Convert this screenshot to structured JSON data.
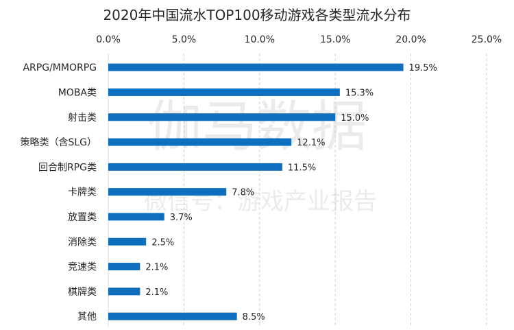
{
  "watermark": {
    "main": "伽马数据",
    "sub": "微信号：游戏产业报告"
  },
  "chart_data": {
    "type": "bar",
    "orientation": "horizontal",
    "title": "2020年中国流水TOP100移动游戏各类型流水分布",
    "xlabel": "",
    "ylabel": "",
    "xlim": [
      0,
      25
    ],
    "x_tick_values": [
      0,
      5,
      10,
      15,
      20,
      25
    ],
    "x_tick_labels": [
      "0.0%",
      "5.0%",
      "10.0%",
      "15.0%",
      "20.0%",
      "25.0%"
    ],
    "categories": [
      "ARPG/MMORPG",
      "MOBA类",
      "射击类",
      "策略类（含SLG）",
      "回合制RPG类",
      "卡牌类",
      "放置类",
      "消除类",
      "竞速类",
      "棋牌类",
      "其他"
    ],
    "values": [
      19.5,
      15.3,
      15.0,
      12.1,
      11.5,
      7.8,
      3.7,
      2.5,
      2.1,
      2.1,
      8.5
    ],
    "data_labels": [
      "19.5%",
      "15.3%",
      "15.0%",
      "12.1%",
      "11.5%",
      "7.8%",
      "3.7%",
      "2.5%",
      "2.1%",
      "2.1%",
      "8.5%"
    ],
    "bar_color": "#0d6fbd",
    "grid": true,
    "grid_style": "dashed-vertical",
    "axis_position": "top"
  }
}
